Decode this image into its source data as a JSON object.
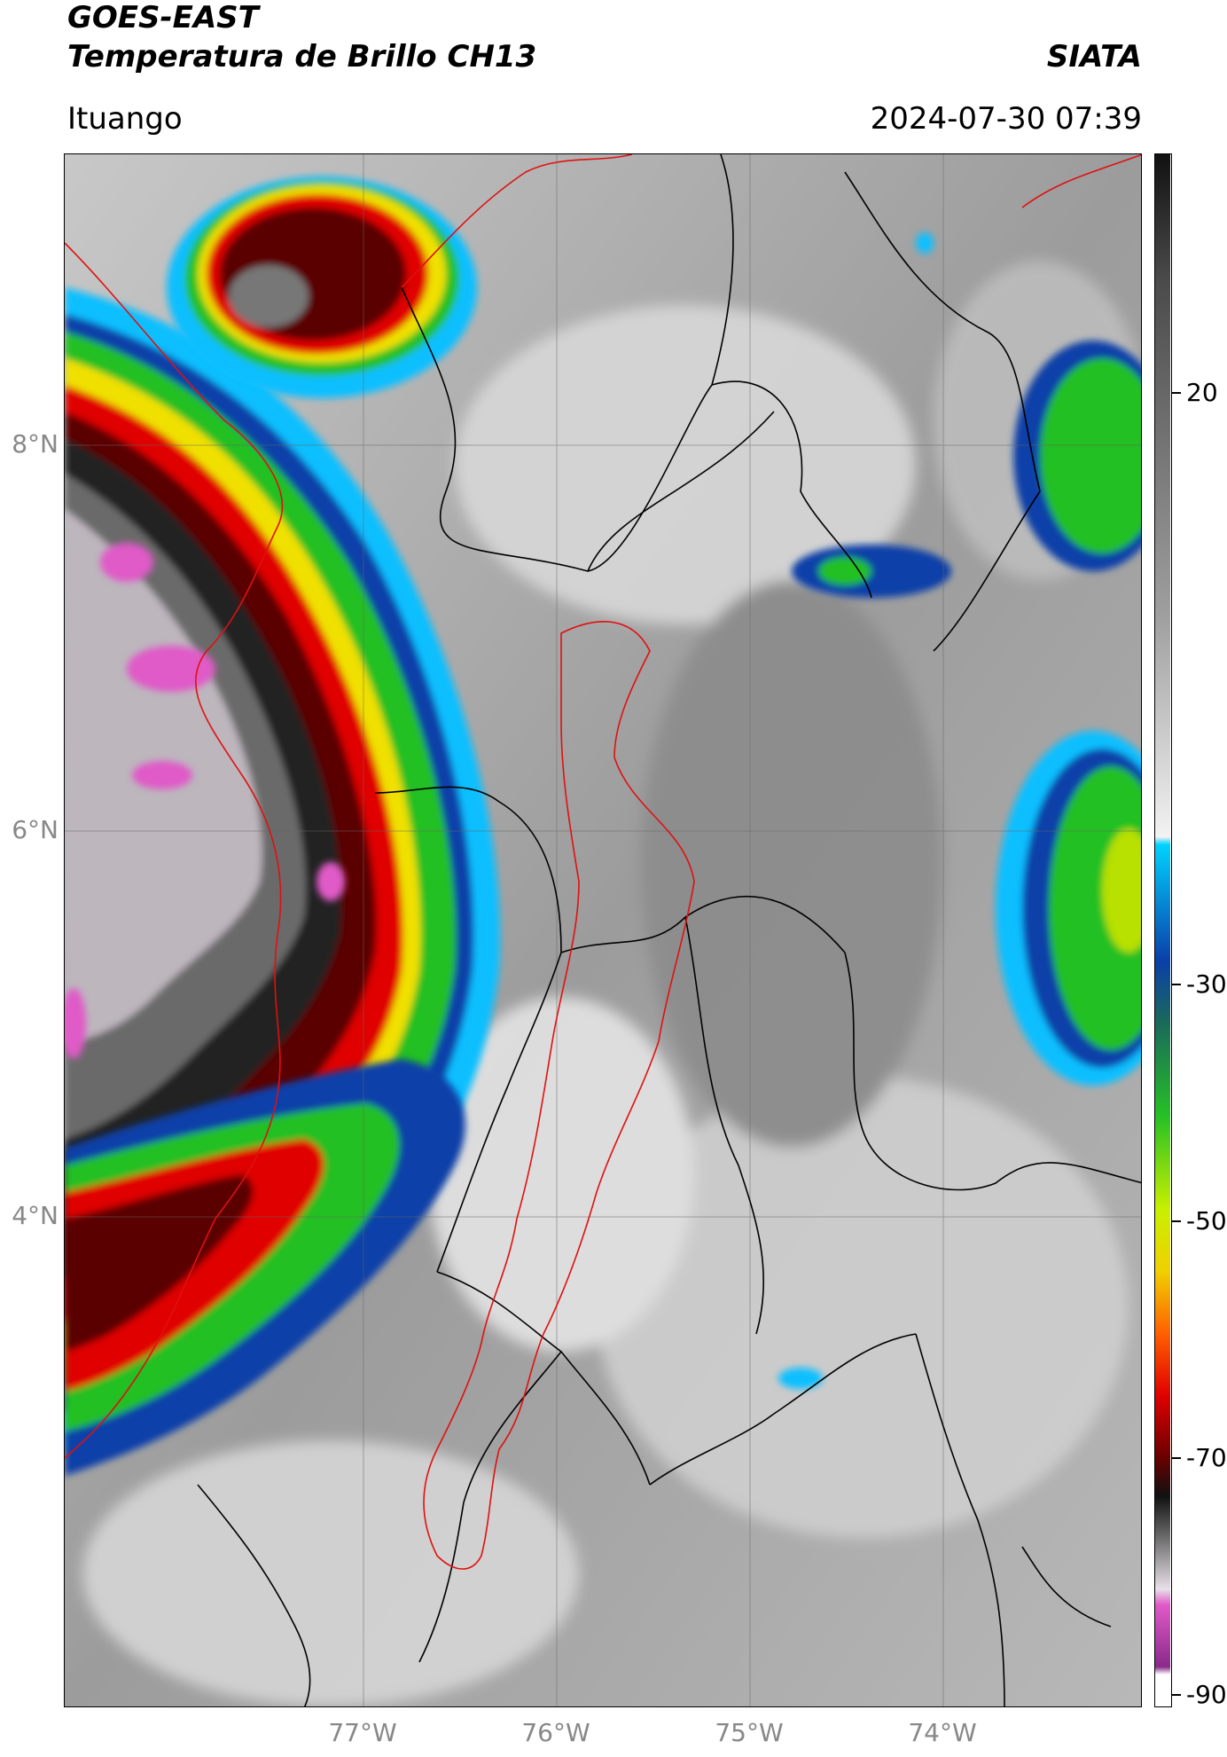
{
  "header": {
    "title_line1": "GOES-EAST",
    "title_line2": "Temperatura de Brillo CH13",
    "organization": "SIATA",
    "region": "Ituango",
    "timestamp": "2024-07-30 07:39"
  },
  "map": {
    "lat_labels": [
      "8°N",
      "6°N",
      "4°N"
    ],
    "lon_labels": [
      "77°W",
      "76°W",
      "75°W",
      "74°W"
    ]
  },
  "colorbar": {
    "tick_labels": [
      "20",
      "-30",
      "-50",
      "-70",
      "-90"
    ],
    "colors": {
      "warm_gray": "#a6a6a6",
      "white": "#f2f2f2",
      "cyan": "#00d2ff",
      "blue": "#0b3fa8",
      "green": "#26c026",
      "yellow": "#f0e000",
      "red": "#e00000",
      "dark_red": "#6a0000",
      "black": "#111111",
      "magenta": "#e05ac8",
      "purple": "#8a2a8a"
    }
  }
}
